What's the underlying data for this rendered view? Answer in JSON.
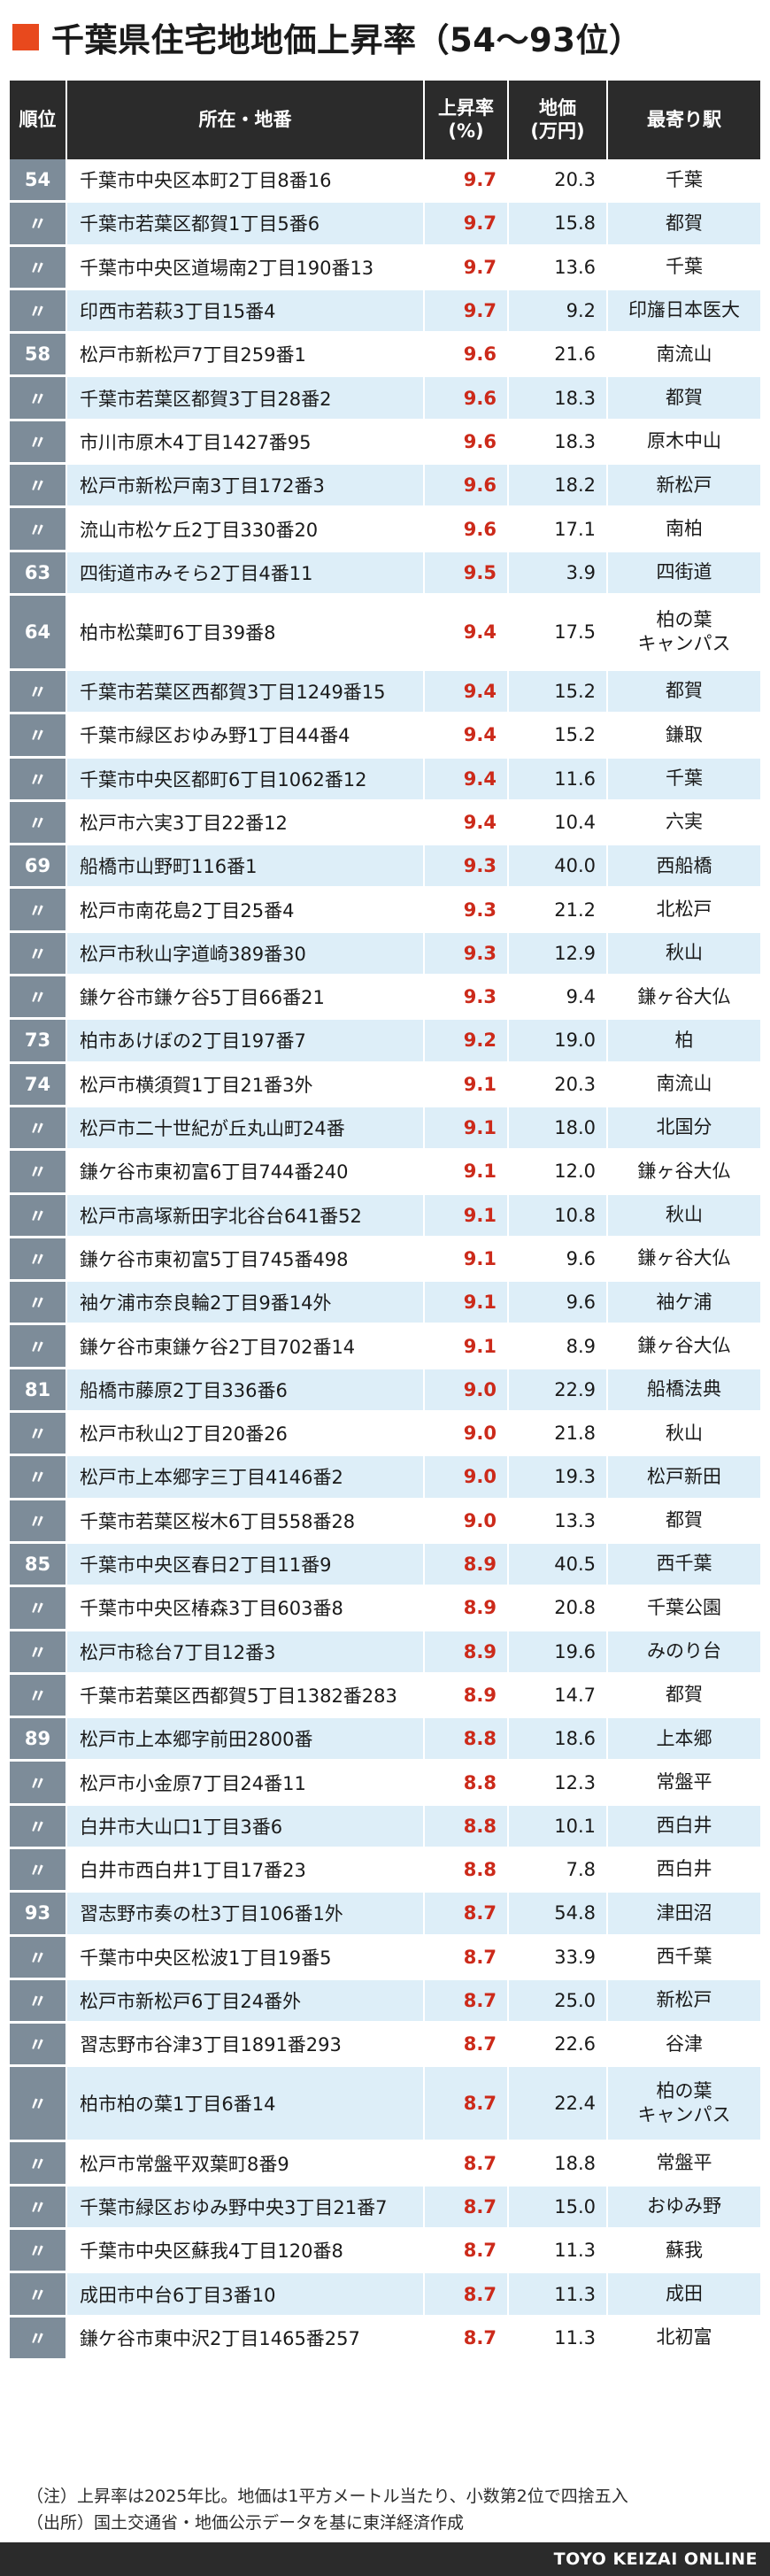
{
  "title": "千葉県住宅地地価上昇率（54〜93位）",
  "colors": {
    "accent": "#e8491d",
    "rate": "#cc2a1a",
    "header_bg": "#2b2b2b",
    "rank_bg": "#7d8c99",
    "row_alt": "#ddeef8"
  },
  "headers": {
    "rank": "順位",
    "loc": "所在・地番",
    "rate": "上昇率\n(%)",
    "price": "地価\n(万円)",
    "stn": "最寄り駅"
  },
  "rows": [
    {
      "rank": "54",
      "loc": "千葉市中央区本町2丁目8番16",
      "rate": "9.7",
      "price": "20.3",
      "stn": "千葉"
    },
    {
      "rank": "〃",
      "loc": "千葉市若葉区都賀1丁目5番6",
      "rate": "9.7",
      "price": "15.8",
      "stn": "都賀"
    },
    {
      "rank": "〃",
      "loc": "千葉市中央区道場南2丁目190番13",
      "rate": "9.7",
      "price": "13.6",
      "stn": "千葉"
    },
    {
      "rank": "〃",
      "loc": "印西市若萩3丁目15番4",
      "rate": "9.7",
      "price": "9.2",
      "stn": "印旛日本医大"
    },
    {
      "rank": "58",
      "loc": "松戸市新松戸7丁目259番1",
      "rate": "9.6",
      "price": "21.6",
      "stn": "南流山"
    },
    {
      "rank": "〃",
      "loc": "千葉市若葉区都賀3丁目28番2",
      "rate": "9.6",
      "price": "18.3",
      "stn": "都賀"
    },
    {
      "rank": "〃",
      "loc": "市川市原木4丁目1427番95",
      "rate": "9.6",
      "price": "18.3",
      "stn": "原木中山"
    },
    {
      "rank": "〃",
      "loc": "松戸市新松戸南3丁目172番3",
      "rate": "9.6",
      "price": "18.2",
      "stn": "新松戸"
    },
    {
      "rank": "〃",
      "loc": "流山市松ケ丘2丁目330番20",
      "rate": "9.6",
      "price": "17.1",
      "stn": "南柏"
    },
    {
      "rank": "63",
      "loc": "四街道市みそら2丁目4番11",
      "rate": "9.5",
      "price": "3.9",
      "stn": "四街道"
    },
    {
      "rank": "64",
      "loc": "柏市松葉町6丁目39番8",
      "rate": "9.4",
      "price": "17.5",
      "stn": "柏の葉\nキャンパス",
      "tall": true
    },
    {
      "rank": "〃",
      "loc": "千葉市若葉区西都賀3丁目1249番15",
      "rate": "9.4",
      "price": "15.2",
      "stn": "都賀"
    },
    {
      "rank": "〃",
      "loc": "千葉市緑区おゆみ野1丁目44番4",
      "rate": "9.4",
      "price": "15.2",
      "stn": "鎌取"
    },
    {
      "rank": "〃",
      "loc": "千葉市中央区都町6丁目1062番12",
      "rate": "9.4",
      "price": "11.6",
      "stn": "千葉"
    },
    {
      "rank": "〃",
      "loc": "松戸市六実3丁目22番12",
      "rate": "9.4",
      "price": "10.4",
      "stn": "六実"
    },
    {
      "rank": "69",
      "loc": "船橋市山野町116番1",
      "rate": "9.3",
      "price": "40.0",
      "stn": "西船橋"
    },
    {
      "rank": "〃",
      "loc": "松戸市南花島2丁目25番4",
      "rate": "9.3",
      "price": "21.2",
      "stn": "北松戸"
    },
    {
      "rank": "〃",
      "loc": "松戸市秋山字道崎389番30",
      "rate": "9.3",
      "price": "12.9",
      "stn": "秋山"
    },
    {
      "rank": "〃",
      "loc": "鎌ケ谷市鎌ケ谷5丁目66番21",
      "rate": "9.3",
      "price": "9.4",
      "stn": "鎌ヶ谷大仏"
    },
    {
      "rank": "73",
      "loc": "柏市あけぼの2丁目197番7",
      "rate": "9.2",
      "price": "19.0",
      "stn": "柏"
    },
    {
      "rank": "74",
      "loc": "松戸市横須賀1丁目21番3外",
      "rate": "9.1",
      "price": "20.3",
      "stn": "南流山"
    },
    {
      "rank": "〃",
      "loc": "松戸市二十世紀が丘丸山町24番",
      "rate": "9.1",
      "price": "18.0",
      "stn": "北国分"
    },
    {
      "rank": "〃",
      "loc": "鎌ケ谷市東初富6丁目744番240",
      "rate": "9.1",
      "price": "12.0",
      "stn": "鎌ヶ谷大仏"
    },
    {
      "rank": "〃",
      "loc": "松戸市高塚新田字北谷台641番52",
      "rate": "9.1",
      "price": "10.8",
      "stn": "秋山"
    },
    {
      "rank": "〃",
      "loc": "鎌ケ谷市東初富5丁目745番498",
      "rate": "9.1",
      "price": "9.6",
      "stn": "鎌ヶ谷大仏"
    },
    {
      "rank": "〃",
      "loc": "袖ケ浦市奈良輪2丁目9番14外",
      "rate": "9.1",
      "price": "9.6",
      "stn": "袖ケ浦"
    },
    {
      "rank": "〃",
      "loc": "鎌ケ谷市東鎌ケ谷2丁目702番14",
      "rate": "9.1",
      "price": "8.9",
      "stn": "鎌ヶ谷大仏"
    },
    {
      "rank": "81",
      "loc": "船橋市藤原2丁目336番6",
      "rate": "9.0",
      "price": "22.9",
      "stn": "船橋法典"
    },
    {
      "rank": "〃",
      "loc": "松戸市秋山2丁目20番26",
      "rate": "9.0",
      "price": "21.8",
      "stn": "秋山"
    },
    {
      "rank": "〃",
      "loc": "松戸市上本郷字三丁目4146番2",
      "rate": "9.0",
      "price": "19.3",
      "stn": "松戸新田"
    },
    {
      "rank": "〃",
      "loc": "千葉市若葉区桜木6丁目558番28",
      "rate": "9.0",
      "price": "13.3",
      "stn": "都賀"
    },
    {
      "rank": "85",
      "loc": "千葉市中央区春日2丁目11番9",
      "rate": "8.9",
      "price": "40.5",
      "stn": "西千葉"
    },
    {
      "rank": "〃",
      "loc": "千葉市中央区椿森3丁目603番8",
      "rate": "8.9",
      "price": "20.8",
      "stn": "千葉公園"
    },
    {
      "rank": "〃",
      "loc": "松戸市稔台7丁目12番3",
      "rate": "8.9",
      "price": "19.6",
      "stn": "みのり台"
    },
    {
      "rank": "〃",
      "loc": "千葉市若葉区西都賀5丁目1382番283",
      "rate": "8.9",
      "price": "14.7",
      "stn": "都賀"
    },
    {
      "rank": "89",
      "loc": "松戸市上本郷字前田2800番",
      "rate": "8.8",
      "price": "18.6",
      "stn": "上本郷"
    },
    {
      "rank": "〃",
      "loc": "松戸市小金原7丁目24番11",
      "rate": "8.8",
      "price": "12.3",
      "stn": "常盤平"
    },
    {
      "rank": "〃",
      "loc": "白井市大山口1丁目3番6",
      "rate": "8.8",
      "price": "10.1",
      "stn": "西白井"
    },
    {
      "rank": "〃",
      "loc": "白井市西白井1丁目17番23",
      "rate": "8.8",
      "price": "7.8",
      "stn": "西白井"
    },
    {
      "rank": "93",
      "loc": "習志野市奏の杜3丁目106番1外",
      "rate": "8.7",
      "price": "54.8",
      "stn": "津田沼"
    },
    {
      "rank": "〃",
      "loc": "千葉市中央区松波1丁目19番5",
      "rate": "8.7",
      "price": "33.9",
      "stn": "西千葉"
    },
    {
      "rank": "〃",
      "loc": "松戸市新松戸6丁目24番外",
      "rate": "8.7",
      "price": "25.0",
      "stn": "新松戸"
    },
    {
      "rank": "〃",
      "loc": "習志野市谷津3丁目1891番293",
      "rate": "8.7",
      "price": "22.6",
      "stn": "谷津"
    },
    {
      "rank": "〃",
      "loc": "柏市柏の葉1丁目6番14",
      "rate": "8.7",
      "price": "22.4",
      "stn": "柏の葉\nキャンパス",
      "tall": true
    },
    {
      "rank": "〃",
      "loc": "松戸市常盤平双葉町8番9",
      "rate": "8.7",
      "price": "18.8",
      "stn": "常盤平"
    },
    {
      "rank": "〃",
      "loc": "千葉市緑区おゆみ野中央3丁目21番7",
      "rate": "8.7",
      "price": "15.0",
      "stn": "おゆみ野"
    },
    {
      "rank": "〃",
      "loc": "千葉市中央区蘇我4丁目120番8",
      "rate": "8.7",
      "price": "11.3",
      "stn": "蘇我"
    },
    {
      "rank": "〃",
      "loc": "成田市中台6丁目3番10",
      "rate": "8.7",
      "price": "11.3",
      "stn": "成田"
    },
    {
      "rank": "〃",
      "loc": "鎌ケ谷市東中沢2丁目1465番257",
      "rate": "8.7",
      "price": "11.3",
      "stn": "北初富"
    }
  ],
  "notes": {
    "line1": "（注）上昇率は2025年比。地価は1平方メートル当たり、小数第2位で四捨五入",
    "line2": "（出所）国土交通省・地価公示データを基に東洋経済作成"
  },
  "footer": "TOYO KEIZAI ONLINE"
}
